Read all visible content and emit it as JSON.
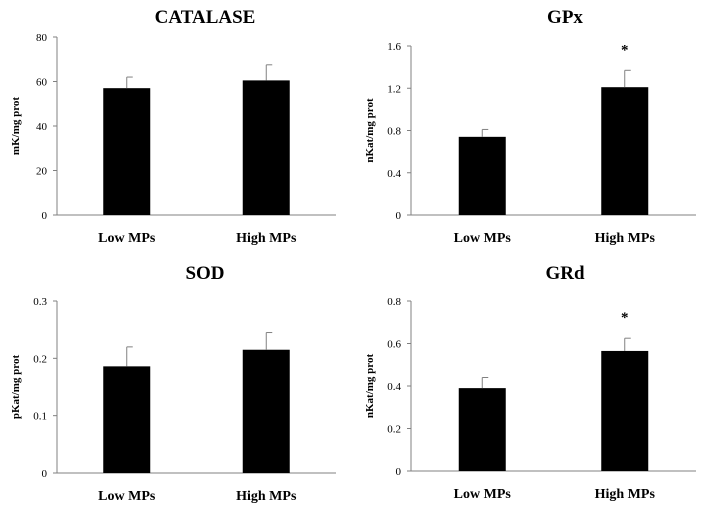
{
  "chart_data": [
    {
      "type": "bar",
      "title": "CATALASE",
      "ylabel": "mK/mg prot",
      "xlabel": "",
      "categories": [
        "Low MPs",
        "High MPs"
      ],
      "values": [
        57,
        60.5
      ],
      "errors": [
        5,
        7
      ],
      "significance": [
        "",
        ""
      ],
      "ylim": [
        0,
        80
      ],
      "yticks": [
        "0",
        "20",
        "40",
        "60",
        "80"
      ],
      "ytick_values": [
        0,
        20,
        40,
        60,
        80
      ]
    },
    {
      "type": "bar",
      "title": "GPx",
      "ylabel": "nKat/mg prot",
      "xlabel": "",
      "categories": [
        "Low MPs",
        "High MPs"
      ],
      "values": [
        0.74,
        1.21
      ],
      "errors": [
        0.07,
        0.16
      ],
      "significance": [
        "",
        "*"
      ],
      "ylim": [
        0,
        1.6
      ],
      "yticks": [
        "0",
        "0.4",
        "0.8",
        "1.2",
        "1.6"
      ],
      "ytick_values": [
        0,
        0.4,
        0.8,
        1.2,
        1.6
      ]
    },
    {
      "type": "bar",
      "title": "SOD",
      "ylabel": "pKat/mg prot",
      "xlabel": "",
      "categories": [
        "Low MPs",
        "High MPs"
      ],
      "values": [
        0.186,
        0.215
      ],
      "errors": [
        0.034,
        0.03
      ],
      "significance": [
        "",
        ""
      ],
      "ylim": [
        0,
        0.3
      ],
      "yticks": [
        "0",
        "0.1",
        "0.2",
        "0.3"
      ],
      "ytick_values": [
        0,
        0.1,
        0.2,
        0.3
      ]
    },
    {
      "type": "bar",
      "title": "GRd",
      "ylabel": "nKat/mg prot",
      "xlabel": "",
      "categories": [
        "Low MPs",
        "High MPs"
      ],
      "values": [
        0.39,
        0.565
      ],
      "errors": [
        0.05,
        0.06
      ],
      "significance": [
        "",
        "*"
      ],
      "ylim": [
        0,
        0.8
      ],
      "yticks": [
        "0",
        "0.2",
        "0.4",
        "0.6",
        "0.8"
      ],
      "ytick_values": [
        0,
        0.2,
        0.4,
        0.6,
        0.8
      ]
    }
  ],
  "colors": {
    "bar": "#000000",
    "axis": "#808080",
    "error": "#808080",
    "text": "#000000"
  }
}
